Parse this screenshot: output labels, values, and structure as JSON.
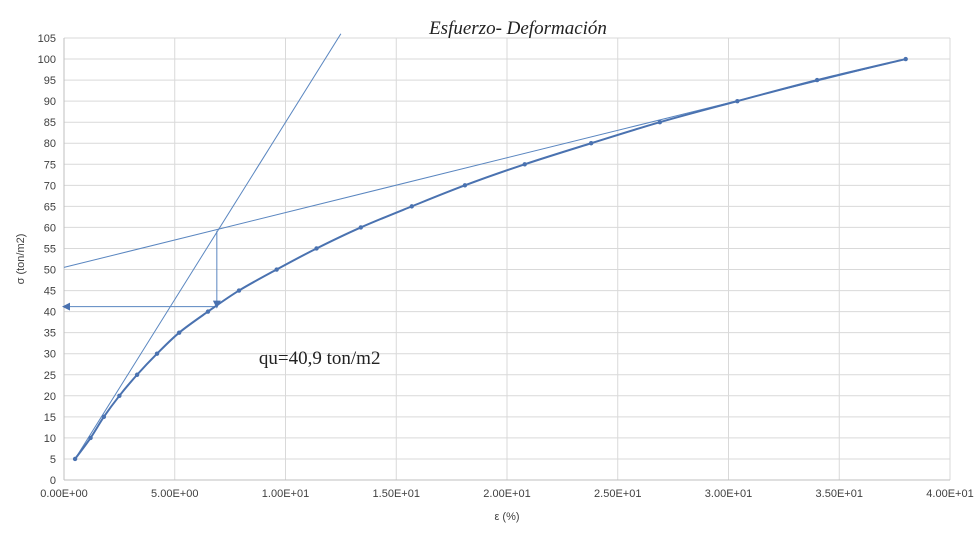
{
  "chart_data": {
    "type": "scatter",
    "title": "Esfuerzo- Deformación",
    "xlabel": "ε (%)",
    "ylabel": "σ (ton/m2)",
    "xlim": [
      0,
      40
    ],
    "ylim": [
      0,
      105
    ],
    "x_ticks": [
      0,
      5,
      10,
      15,
      20,
      25,
      30,
      35,
      40
    ],
    "x_tick_labels": [
      "0.00E+00",
      "5.00E+00",
      "1.00E+01",
      "1.50E+01",
      "2.00E+01",
      "2.50E+01",
      "3.00E+01",
      "3.50E+01",
      "4.00E+01"
    ],
    "y_ticks": [
      0,
      5,
      10,
      15,
      20,
      25,
      30,
      35,
      40,
      45,
      50,
      55,
      60,
      65,
      70,
      75,
      80,
      85,
      90,
      95,
      100,
      105
    ],
    "y_tick_labels": [
      "0",
      "5",
      "10",
      "15",
      "20",
      "25",
      "30",
      "35",
      "40",
      "45",
      "50",
      "55",
      "60",
      "65",
      "70",
      "75",
      "80",
      "85",
      "90",
      "95",
      "100",
      "105"
    ],
    "grid": true,
    "series": [
      {
        "color": "#4a72b0",
        "x": [
          0.5,
          1.2,
          1.8,
          2.5,
          3.3,
          4.2,
          5.2,
          6.5,
          7.9,
          9.6,
          11.4,
          13.4,
          15.7,
          18.1,
          20.8,
          23.8,
          26.9,
          30.4,
          34.0,
          38.0
        ],
        "y": [
          5,
          10,
          15,
          20,
          25,
          30,
          35,
          40,
          45,
          50,
          55,
          60,
          65,
          70,
          75,
          80,
          85,
          90,
          95,
          100
        ]
      }
    ],
    "construction_lines": [
      {
        "label": "initial-tangent",
        "color": "#5a86c0",
        "x": [
          0.5,
          12.5
        ],
        "y": [
          5,
          106
        ]
      },
      {
        "label": "final-tangent",
        "color": "#5a86c0",
        "x": [
          0,
          38
        ],
        "y": [
          50.5,
          100
        ]
      }
    ],
    "arrows": [
      {
        "label": "vertical-drop",
        "color": "#5a86c0",
        "x": [
          6.9,
          6.9
        ],
        "y": [
          59.2,
          41.2
        ]
      },
      {
        "label": "to-y-axis",
        "color": "#5a86c0",
        "x": [
          6.9,
          0
        ],
        "y": [
          41.2,
          41.2
        ]
      }
    ],
    "annotation": {
      "text": "qu=40,9 ton/m2",
      "x": 8.8,
      "y": 27.5
    }
  }
}
